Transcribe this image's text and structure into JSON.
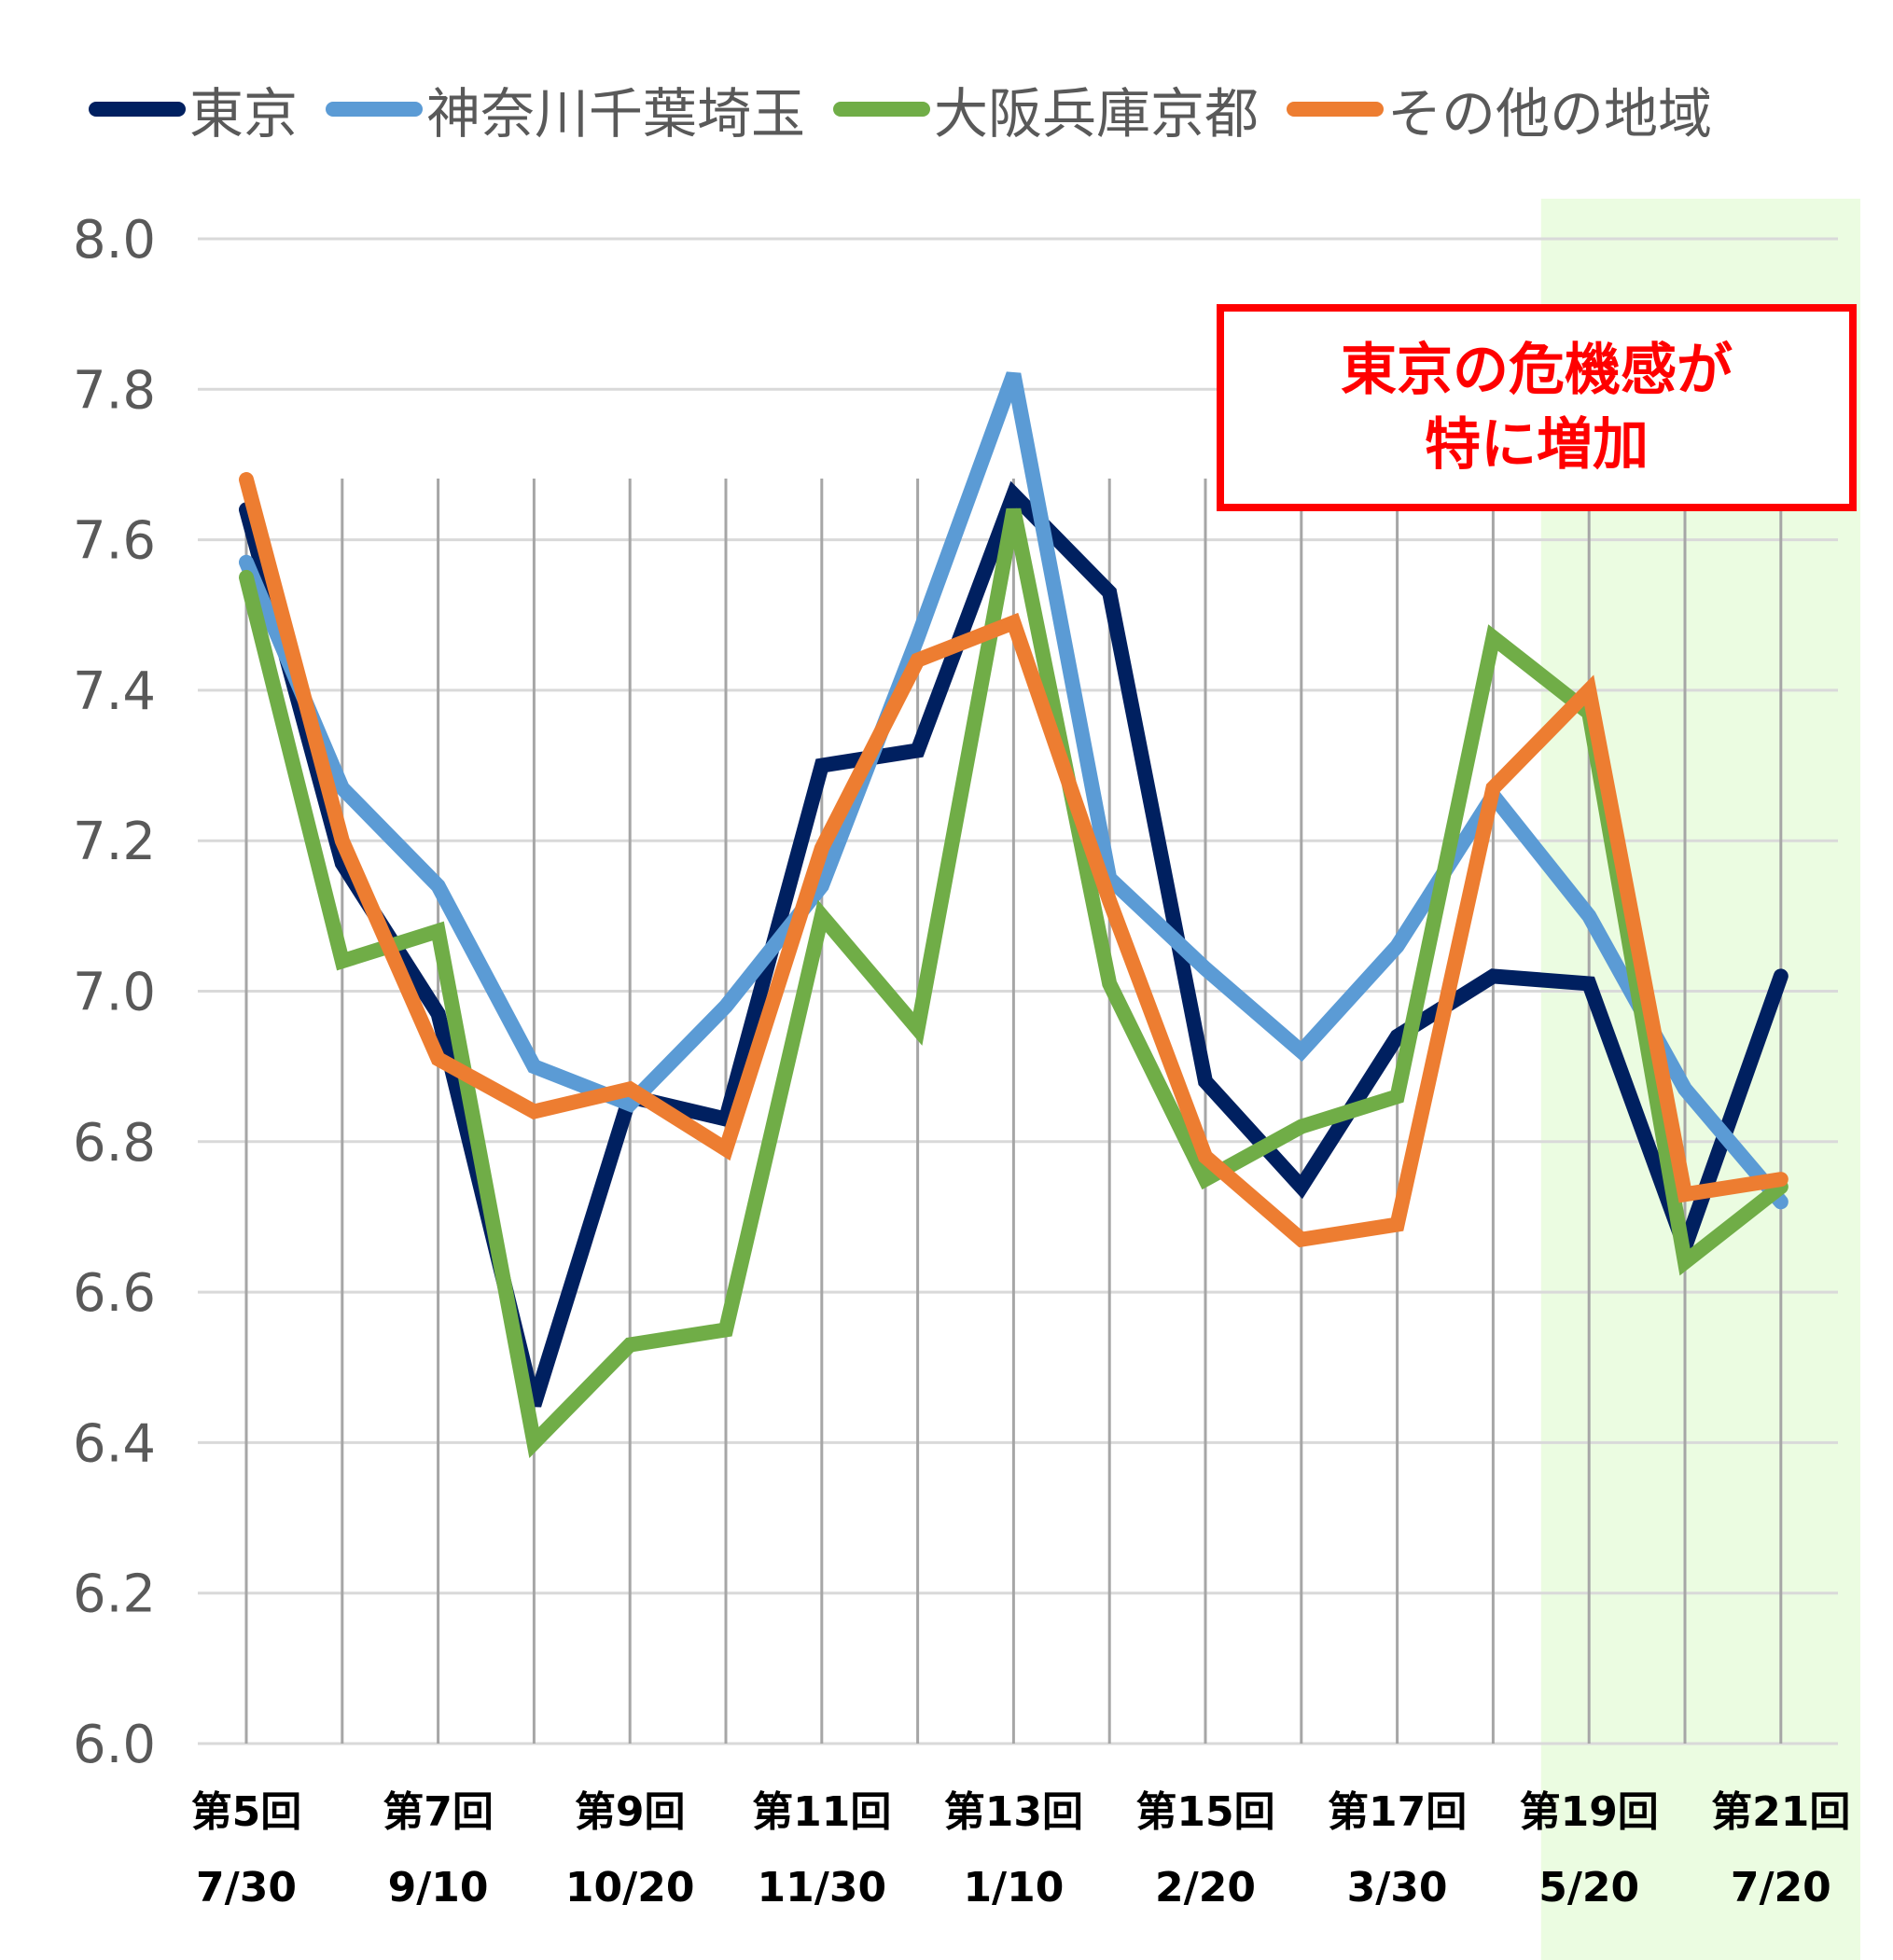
{
  "chart_data": {
    "type": "line",
    "legend_position": "top",
    "ylim": [
      6.0,
      8.0
    ],
    "yticks": [
      "6.0",
      "6.2",
      "6.4",
      "6.6",
      "6.8",
      "7.0",
      "7.2",
      "7.4",
      "7.6",
      "7.8",
      "8.0"
    ],
    "x_tick_labels": [
      {
        "round": "第5回",
        "date": "7/30"
      },
      {
        "round": "",
        "date": ""
      },
      {
        "round": "第7回",
        "date": "9/10"
      },
      {
        "round": "",
        "date": ""
      },
      {
        "round": "第9回",
        "date": "10/20"
      },
      {
        "round": "",
        "date": ""
      },
      {
        "round": "第11回",
        "date": "11/30"
      },
      {
        "round": "",
        "date": ""
      },
      {
        "round": "第13回",
        "date": "1/10"
      },
      {
        "round": "",
        "date": ""
      },
      {
        "round": "第15回",
        "date": "2/20"
      },
      {
        "round": "",
        "date": ""
      },
      {
        "round": "第17回",
        "date": "3/30"
      },
      {
        "round": "",
        "date": ""
      },
      {
        "round": "第19回",
        "date": "5/20"
      },
      {
        "round": "",
        "date": ""
      },
      {
        "round": "第21回",
        "date": "7/20"
      }
    ],
    "highlight_band": {
      "from_index": 14,
      "to_index": 16,
      "color": "#ebfce1"
    },
    "series": [
      {
        "name": "東京",
        "color": "#002060",
        "values": [
          7.64,
          7.17,
          6.97,
          6.45,
          6.86,
          6.83,
          7.3,
          7.32,
          7.66,
          7.53,
          6.88,
          6.74,
          6.94,
          7.02,
          7.01,
          6.66,
          7.02
        ]
      },
      {
        "name": "神奈川千葉埼玉",
        "color": "#5b9bd5",
        "values": [
          7.57,
          7.27,
          7.14,
          6.9,
          6.85,
          6.98,
          7.14,
          7.47,
          7.82,
          7.15,
          7.03,
          6.92,
          7.06,
          7.26,
          7.1,
          6.87,
          6.72
        ]
      },
      {
        "name": "大阪兵庫京都",
        "color": "#70ad47",
        "values": [
          7.55,
          7.04,
          7.08,
          6.4,
          6.53,
          6.55,
          7.1,
          6.95,
          7.64,
          7.01,
          6.75,
          6.82,
          6.86,
          7.47,
          7.37,
          6.64,
          6.74
        ]
      },
      {
        "name": "その他の地域",
        "color": "#ed7d31",
        "values": [
          7.68,
          7.2,
          6.91,
          6.84,
          6.87,
          6.79,
          7.19,
          7.44,
          7.49,
          7.12,
          6.78,
          6.67,
          6.69,
          7.27,
          7.4,
          6.73,
          6.75
        ]
      }
    ]
  },
  "annotation": {
    "line1": "東京の危機感が",
    "line2": "特に増加",
    "color": "#ff0000"
  }
}
